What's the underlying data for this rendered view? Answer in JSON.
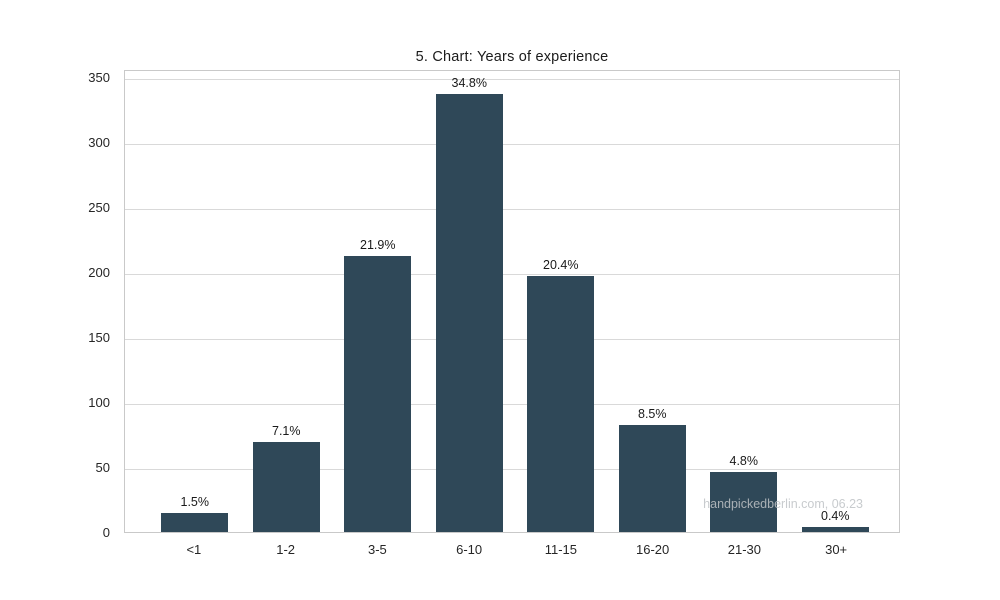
{
  "chart_data": {
    "type": "bar",
    "title": "5. Chart: Years of experience",
    "categories": [
      "<1",
      "1-2",
      "3-5",
      "6-10",
      "11-15",
      "16-20",
      "21-30",
      "30+"
    ],
    "values": [
      15,
      69,
      212,
      337,
      197,
      82,
      46,
      4
    ],
    "bar_labels": [
      "1.5%",
      "7.1%",
      "21.9%",
      "34.8%",
      "20.4%",
      "8.5%",
      "4.8%",
      "0.4%"
    ],
    "xlabel": "",
    "ylabel": "",
    "ylim": [
      0,
      356
    ],
    "yticks": [
      0,
      50,
      100,
      150,
      200,
      250,
      300,
      350
    ],
    "grid": "horizontal-major-only",
    "legend": "none",
    "colors": {
      "bar": "#2f4858",
      "grid": "#d9d9d9",
      "spine": "#c9c9c9",
      "title_text": "#1b1b1b",
      "tick_text": "#262626",
      "label_text": "#1a1a1a",
      "watermark_text": "#bfc3c6"
    },
    "watermark": "handpickedberlin.com, 06.23"
  }
}
